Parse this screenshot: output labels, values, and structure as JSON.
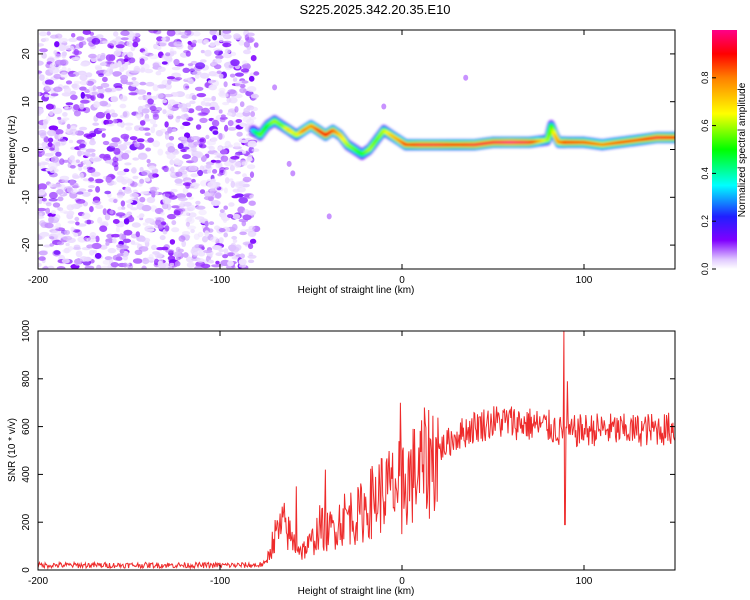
{
  "title": "S225.2025.342.20.35.E10",
  "colors": {
    "snr_line": "#ee2b2b",
    "axis": "#000000"
  },
  "chart_data": [
    {
      "type": "heatmap",
      "xlabel": "Height of straight line (km)",
      "ylabel": "Frequency (Hz)",
      "xlim": [
        -200,
        150
      ],
      "ylim": [
        -25,
        25
      ],
      "xticks": [
        "-200",
        "-100",
        "0",
        "100"
      ],
      "xtick_values": [
        -200,
        -100,
        0,
        100
      ],
      "yticks": [
        "-20",
        "-10",
        "0",
        "10",
        "20"
      ],
      "ytick_values": [
        -20,
        -10,
        0,
        10,
        20
      ],
      "colorbar": {
        "label": "Normalized spectral amplitude",
        "range": [
          0,
          1
        ],
        "ticks": [
          "0.0",
          "0.2",
          "0.4",
          "0.6",
          "0.8"
        ],
        "tick_values": [
          0.0,
          0.2,
          0.4,
          0.6,
          0.8
        ]
      },
      "noise_region": {
        "x_start": -200,
        "x_end": -80,
        "amplitude_range": [
          0.0,
          0.12
        ]
      },
      "ridge": {
        "x": [
          -82,
          -78,
          -74,
          -70,
          -66,
          -62,
          -58,
          -54,
          -50,
          -46,
          -42,
          -38,
          -34,
          -30,
          -26,
          -22,
          -18,
          -14,
          -10,
          -6,
          -2,
          2,
          10,
          20,
          30,
          40,
          50,
          60,
          70,
          80,
          82,
          84,
          86,
          90,
          100,
          110,
          120,
          130,
          140,
          150
        ],
        "frequency": [
          4,
          3,
          5,
          6,
          5,
          4,
          3,
          4,
          5,
          4,
          3,
          4,
          3,
          1,
          0,
          -1,
          0,
          2,
          4,
          3,
          2,
          1,
          1,
          1,
          1,
          1,
          1.5,
          1.5,
          1.5,
          2,
          5,
          3,
          1.5,
          1.5,
          1.5,
          1,
          1.5,
          2,
          2.5,
          2.5
        ],
        "amplitude": [
          0.35,
          0.55,
          0.5,
          0.6,
          0.55,
          0.7,
          0.6,
          0.8,
          0.75,
          0.85,
          0.9,
          0.85,
          0.7,
          0.6,
          0.55,
          0.5,
          0.6,
          0.55,
          0.6,
          0.7,
          0.75,
          0.85,
          0.95,
          0.95,
          0.9,
          0.95,
          0.95,
          1.0,
          0.95,
          0.6,
          0.5,
          0.7,
          0.75,
          0.9,
          0.85,
          0.8,
          0.85,
          0.85,
          0.95,
          0.9
        ]
      }
    },
    {
      "type": "line",
      "xlabel": "Height of straight line (km)",
      "ylabel": "SNR (10 * v/v)",
      "xlim": [
        -200,
        150
      ],
      "ylim": [
        0,
        1000
      ],
      "xticks": [
        "-200",
        "-100",
        "0",
        "100"
      ],
      "xtick_values": [
        -200,
        -100,
        0,
        100
      ],
      "yticks": [
        "0",
        "200",
        "400",
        "600",
        "800",
        "1000"
      ],
      "ytick_values": [
        0,
        200,
        400,
        600,
        800,
        1000
      ],
      "series": [
        {
          "name": "SNR",
          "x": [
            -200,
            -180,
            -160,
            -140,
            -120,
            -100,
            -90,
            -80,
            -75,
            -70,
            -65,
            -60,
            -55,
            -50,
            -45,
            -40,
            -35,
            -30,
            -25,
            -20,
            -15,
            -10,
            -5,
            0,
            5,
            10,
            20,
            30,
            40,
            50,
            60,
            70,
            80,
            85,
            90,
            95,
            100,
            110,
            120,
            130,
            140,
            150
          ],
          "y": [
            20,
            20,
            20,
            20,
            20,
            20,
            20,
            20,
            25,
            140,
            190,
            120,
            80,
            110,
            180,
            160,
            200,
            230,
            220,
            260,
            300,
            330,
            340,
            360,
            390,
            420,
            500,
            560,
            600,
            620,
            620,
            610,
            600,
            590,
            560,
            580,
            585,
            590,
            585,
            585,
            590,
            590
          ]
        }
      ],
      "annotations": {
        "spikes": [
          {
            "x": -58,
            "y": 350
          },
          {
            "x": -42,
            "y": 420
          },
          {
            "x": -1,
            "y": 700
          },
          {
            "x": 0,
            "y": 150
          },
          {
            "x": 89,
            "y": 1000
          },
          {
            "x": 89.5,
            "y": 190
          },
          {
            "x": 91,
            "y": 790
          }
        ]
      }
    }
  ]
}
